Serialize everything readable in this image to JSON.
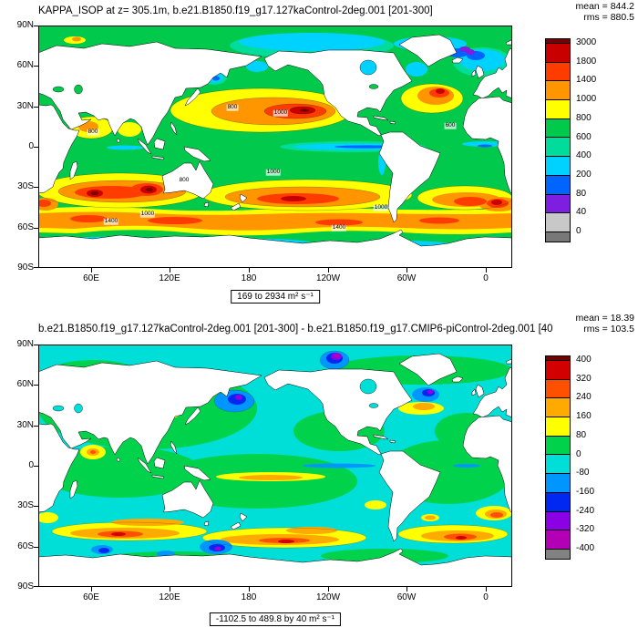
{
  "panels": [
    {
      "title": "KAPPA_ISOP at z= 305.1m, b.e21.B1850.f19_g17.127kaControl-2deg.001 [201-300]",
      "mean": "mean = 844.2",
      "rms": "rms = 880.5",
      "range_label": "169 to 2934 m² s⁻¹",
      "lat_ticks": [
        "90N",
        "60N",
        "30N",
        "0",
        "30S",
        "60S",
        "90S"
      ],
      "lon_ticks": [
        "60E",
        "120E",
        "180",
        "120W",
        "60W",
        "0"
      ],
      "colorbar_labels": [
        "3000",
        "1800",
        "1400",
        "1000",
        "800",
        "600",
        "400",
        "200",
        "80",
        "40",
        "0"
      ],
      "colorbar_colors": {
        "cap_top": "#780000",
        "intervals": [
          "#c80000",
          "#ff3c00",
          "#ff9600",
          "#ffff00",
          "#00c94c",
          "#00dc9b",
          "#00d2ff",
          "#0064ff",
          "#7d1ee1",
          "#c8c8c8"
        ],
        "cap_bottom": "#787878"
      },
      "contour_labels": [
        "800",
        "1000",
        "800",
        "800",
        "1000",
        "1400",
        "1000",
        "600",
        "1000",
        "1400"
      ]
    },
    {
      "title": "b.e21.B1850.f19_g17.127kaControl-2deg.001 [201-300] - b.e21.B1850.f19_g17.CMIP6-piControl-2deg.001 [40",
      "mean": "mean = 18.39",
      "rms": "rms = 103.5",
      "range_label": "-1102.5 to 489.8 by 40 m² s⁻¹",
      "lat_ticks": [
        "90N",
        "60N",
        "30N",
        "0",
        "30S",
        "60S",
        "90S"
      ],
      "lon_ticks": [
        "60E",
        "120E",
        "180",
        "120W",
        "60W",
        "0"
      ],
      "colorbar_labels": [
        "400",
        "320",
        "240",
        "160",
        "80",
        "0",
        "-80",
        "-160",
        "-240",
        "-320",
        "-400"
      ],
      "colorbar_colors": {
        "cap_top": "#780000",
        "intervals": [
          "#d20000",
          "#ff5000",
          "#ffaa00",
          "#ffff00",
          "#00d24b",
          "#00ded8",
          "#0096ff",
          "#0028f0",
          "#8c00e6",
          "#b400b4"
        ],
        "cap_bottom": "#828282"
      },
      "contour_labels": []
    }
  ],
  "chart_data": [
    {
      "type": "heatmap",
      "title": "KAPPA_ISOP at z= 305.1m, b.e21.B1850.f19_g17.127kaControl-2deg.001 [201-300]",
      "variable": "KAPPA_ISOP",
      "level": "z= 305.1m",
      "statistics": {
        "mean": 844.2,
        "rms": 880.5
      },
      "value_range": {
        "min": 169,
        "max": 2934,
        "units": "m2 s-1"
      },
      "contour_levels": [
        0,
        40,
        80,
        200,
        400,
        600,
        800,
        1000,
        1400,
        1800,
        3000
      ],
      "x_axis": {
        "label": "longitude",
        "ticks": [
          "60E",
          "120E",
          "180",
          "120W",
          "60W",
          "0"
        ]
      },
      "y_axis": {
        "label": "latitude",
        "ticks": [
          "90N",
          "60N",
          "30N",
          "0",
          "30S",
          "60S",
          "90S"
        ]
      },
      "legend_position": "right",
      "description": "Global filled-contour map: background ocean 600-800 (green); subtropical gyres and Southern Ocean bands 1000-1800 (yellow/orange) with cores above 1800-3000 (red/dark red) in the N Pacific, NW Atlantic, S Indian, S Pacific and Agulhas regions; low values 0-400 (cyan/blue/purple) near the equator, Arctic and Antarctic margins; land blank."
    },
    {
      "type": "heatmap",
      "title": "b.e21.B1850.f19_g17.127kaControl-2deg.001 [201-300] - b.e21.B1850.f19_g17.CMIP6-piControl-2deg.001 [40",
      "variable": "KAPPA_ISOP difference",
      "statistics": {
        "mean": 18.39,
        "rms": 103.5
      },
      "value_range": {
        "min": -1102.5,
        "max": 489.8,
        "step": 40,
        "units": "m2 s-1"
      },
      "contour_levels": [
        -400,
        -320,
        -240,
        -160,
        -80,
        0,
        80,
        160,
        240,
        320,
        400
      ],
      "x_axis": {
        "label": "longitude",
        "ticks": [
          "60E",
          "120E",
          "180",
          "120W",
          "60W",
          "0"
        ]
      },
      "y_axis": {
        "label": "latitude",
        "ticks": [
          "90N",
          "60N",
          "30N",
          "0",
          "30S",
          "60S",
          "90S"
        ]
      },
      "legend_position": "right",
      "description": "Difference map: mostly -80 to 0 (cyan) and 0 to 80 (green); positive streaks 160-400 (yellow/orange/red) along 30S-55S in all basins, Arabian Sea and western boundary currents; negative spots -160 to -400 (blue/purple/magenta) in Nordic Seas, N Pacific, near New Zealand and Drake Passage."
    }
  ]
}
